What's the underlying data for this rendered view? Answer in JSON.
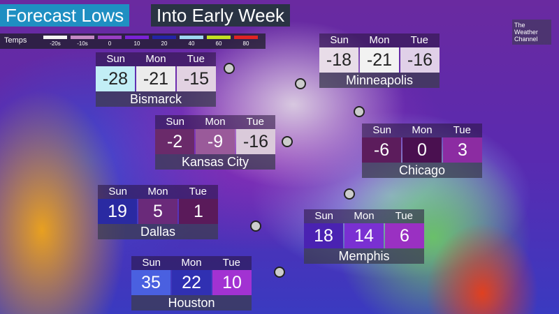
{
  "header": {
    "title": "Forecast Lows",
    "subtitle": "Into Early Week"
  },
  "legend": {
    "label": "Temps",
    "ticks": [
      "-20s",
      "-10s",
      "0",
      "10",
      "20",
      "40",
      "60",
      "80"
    ],
    "colors": [
      "#f4f4f4",
      "#c58ac5",
      "#9a3fc4",
      "#7a22d6",
      "#2424a8",
      "#9fd8f2",
      "#c4e024",
      "#e02424"
    ]
  },
  "logo": [
    "The",
    "Weather",
    "Channel"
  ],
  "cities": [
    {
      "name": "Bismarck",
      "days": [
        "Sun",
        "Mon",
        "Tue"
      ],
      "temps": [
        -28,
        -21,
        -15
      ],
      "colors": [
        "#c2eef6",
        "#ececec",
        "#e2d2e2"
      ]
    },
    {
      "name": "Minneapolis",
      "days": [
        "Sun",
        "Mon",
        "Tue"
      ],
      "temps": [
        -18,
        -21,
        -16
      ],
      "colors": [
        "#e8dce8",
        "#f2f2f2",
        "#e0d0e8"
      ]
    },
    {
      "name": "Kansas City",
      "days": [
        "Sun",
        "Mon",
        "Tue"
      ],
      "temps": [
        -2,
        -9,
        -16
      ],
      "colors": [
        "#6a2a6a",
        "#9a5a9a",
        "#dacada"
      ]
    },
    {
      "name": "Chicago",
      "days": [
        "Sun",
        "Mon",
        "Tue"
      ],
      "temps": [
        -6,
        0,
        3
      ],
      "colors": [
        "#5c1c5c",
        "#4a1050",
        "#8c2ca2"
      ]
    },
    {
      "name": "Dallas",
      "days": [
        "Sun",
        "Mon",
        "Tue"
      ],
      "temps": [
        19,
        5,
        1
      ],
      "colors": [
        "#2a2aa2",
        "#6a2a7a",
        "#5a1a5a"
      ]
    },
    {
      "name": "Memphis",
      "days": [
        "Sun",
        "Mon",
        "Tue"
      ],
      "temps": [
        18,
        14,
        6
      ],
      "colors": [
        "#4a22b2",
        "#7a30d2",
        "#9a30c2"
      ]
    },
    {
      "name": "Houston",
      "days": [
        "Sun",
        "Mon",
        "Tue"
      ],
      "temps": [
        35,
        22,
        10
      ],
      "colors": [
        "#4a60e0",
        "#3030b2",
        "#a232d2"
      ]
    }
  ]
}
